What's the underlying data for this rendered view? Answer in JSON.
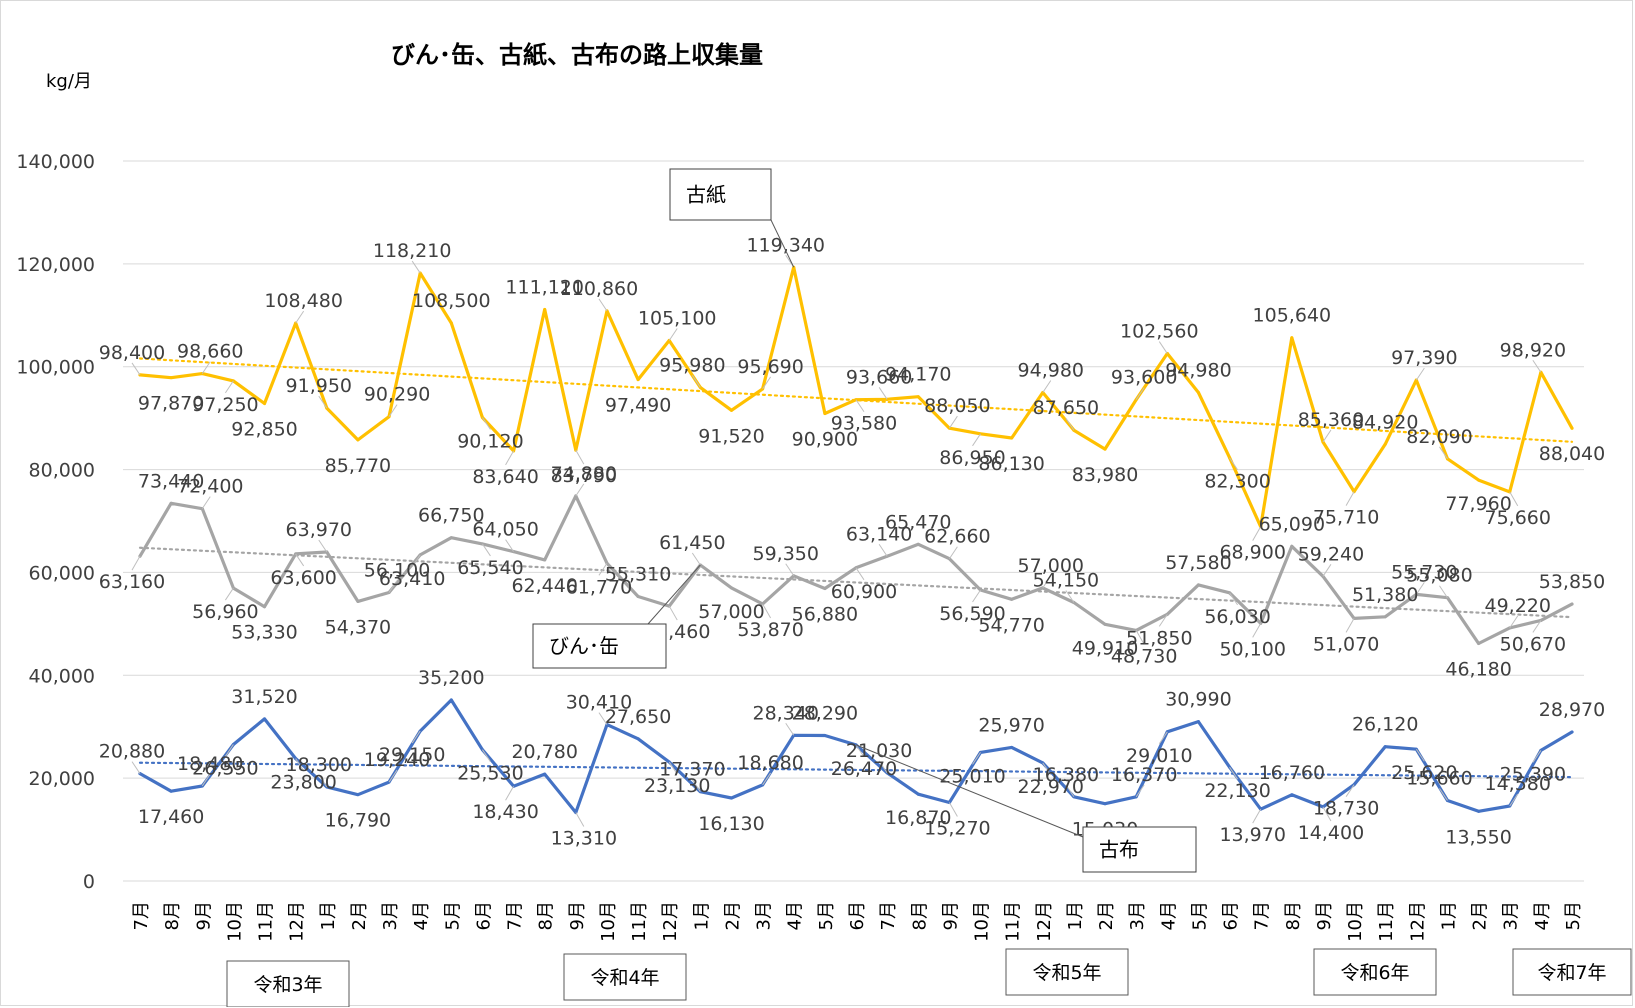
{
  "chart_data": {
    "type": "line",
    "title": "びん･缶、古紙、古布の路上収集量",
    "unit": "kg/月",
    "ylim": [
      0,
      140000
    ],
    "yticks": [
      "0",
      "20,000",
      "40,000",
      "60,000",
      "80,000",
      "100,000",
      "120,000",
      "140,000"
    ],
    "grid": true,
    "categories": [
      "7月",
      "8月",
      "9月",
      "10月",
      "11月",
      "12月",
      "1月",
      "2月",
      "3月",
      "4月",
      "5月",
      "6月",
      "7月",
      "8月",
      "9月",
      "10月",
      "11月",
      "12月",
      "1月",
      "2月",
      "3月",
      "4月",
      "5月",
      "6月",
      "7月",
      "8月",
      "9月",
      "10月",
      "11月",
      "12月",
      "1月",
      "2月",
      "3月",
      "4月",
      "5月",
      "6月",
      "7月",
      "8月",
      "9月",
      "10月",
      "11月",
      "12月",
      "1月",
      "2月",
      "3月",
      "4月",
      "5月"
    ],
    "eras": [
      "令和3年",
      "令和4年",
      "令和5年",
      "令和6年",
      "令和7年"
    ],
    "series": [
      {
        "name": "古紙",
        "color": "#ffc000",
        "values": [
          98400,
          97870,
          98660,
          97250,
          92850,
          108480,
          91950,
          85770,
          90290,
          118210,
          108500,
          90120,
          83640,
          111120,
          83790,
          110860,
          97490,
          105100,
          95980,
          91520,
          95690,
          119340,
          90900,
          93580,
          93660,
          94170,
          88050,
          86950,
          86130,
          94980,
          87650,
          83980,
          93600,
          102560,
          94980,
          82300,
          68900,
          105640,
          85360,
          75710,
          84920,
          97390,
          82090,
          77960,
          75660,
          98920,
          88040
        ],
        "labels": [
          "98,400",
          "97,870",
          "98,660",
          "97,250",
          "92,850",
          "108,480",
          "91,950",
          "85,770",
          "90,290",
          "118,210",
          "108,500",
          "90,120",
          "83,640",
          "111,120",
          "83,790",
          "110,860",
          "97,490",
          "105,100",
          "95,980",
          "91,520",
          "95,690",
          "119,340",
          "90,900",
          "93,580",
          "93,660",
          "94,170",
          "88,050",
          "86,950",
          "86,130",
          "94,980",
          "87,650",
          "83,980",
          "93,600",
          "102,560",
          "94,980",
          "82,300",
          "68,900",
          "105,640",
          "85,360",
          "75,710",
          "84,920",
          "97,390",
          "82,090",
          "77,960",
          "75,660",
          "98,920",
          "88,040"
        ]
      },
      {
        "name": "びん･缶",
        "color": "#a5a5a5",
        "values": [
          63160,
          73440,
          72400,
          56960,
          53330,
          63600,
          63970,
          54370,
          56100,
          63410,
          66750,
          65540,
          64050,
          62440,
          74880,
          61770,
          55310,
          53460,
          61450,
          57000,
          53870,
          59350,
          56880,
          60900,
          63140,
          65470,
          62660,
          56590,
          54770,
          57000,
          54150,
          49910,
          48730,
          51850,
          57580,
          56030,
          50100,
          65090,
          59240,
          51070,
          51380,
          55730,
          55080,
          46180,
          49220,
          50670,
          53850
        ],
        "labels": [
          "63,160",
          "73,440",
          "72,400",
          "56,960",
          "53,330",
          "63,600",
          "63,970",
          "54,370",
          "56,100",
          "63,410",
          "66,750",
          "65,540",
          "64,050",
          "62,440",
          "74,880",
          "61,770",
          "55,310",
          "53,460",
          "61,450",
          "57,000",
          "53,870",
          "59,350",
          "56,880",
          "60,900",
          "63,140",
          "65,470",
          "62,660",
          "56,590",
          "54,770",
          "57,000",
          "54,150",
          "49,910",
          "48,730",
          "51,850",
          "57,580",
          "56,030",
          "50,100",
          "65,090",
          "59,240",
          "51,070",
          "51,380",
          "55,730",
          "55,080",
          "46,180",
          "49,220",
          "50,670",
          "53,850"
        ]
      },
      {
        "name": "古布",
        "color": "#4472c4",
        "values": [
          20880,
          17460,
          18480,
          26550,
          31520,
          23800,
          18300,
          16790,
          19240,
          29150,
          35200,
          25530,
          18430,
          20780,
          13310,
          30410,
          27650,
          23130,
          17370,
          16130,
          18680,
          28340,
          28290,
          26470,
          21030,
          16870,
          15270,
          25010,
          25970,
          22970,
          16380,
          15030,
          16370,
          29010,
          30990,
          22130,
          13970,
          16760,
          14400,
          18730,
          26120,
          25620,
          15660,
          13550,
          14580,
          25390,
          28970
        ],
        "labels": [
          "20,880",
          "17,460",
          "18,480",
          "26,550",
          "31,520",
          "23,800",
          "18,300",
          "16,790",
          "19,240",
          "29,150",
          "35,200",
          "25,530",
          "18,430",
          "20,780",
          "13,310",
          "30,410",
          "27,650",
          "23,130",
          "17,370",
          "16,130",
          "18,680",
          "28,340",
          "28,290",
          "26,470",
          "21,030",
          "16,870",
          "15,270",
          "25,010",
          "25,970",
          "22,970",
          "16,380",
          "15,030",
          "16,370",
          "29,010",
          "30,990",
          "22,130",
          "13,970",
          "16,760",
          "14,400",
          "18,730",
          "26,120",
          "25,620",
          "15,660",
          "13,550",
          "14,580",
          "25,390",
          "28,970"
        ]
      }
    ],
    "trendlines": [
      {
        "series": "古紙",
        "style": "dotted",
        "color": "#ffc000",
        "start": 101600,
        "end": 85400
      },
      {
        "series": "びん･缶",
        "style": "dotted",
        "color": "#a5a5a5",
        "start": 64800,
        "end": 51300
      },
      {
        "series": "古布",
        "style": "dotted",
        "color": "#4472c4",
        "start": 23000,
        "end": 20200
      }
    ]
  }
}
